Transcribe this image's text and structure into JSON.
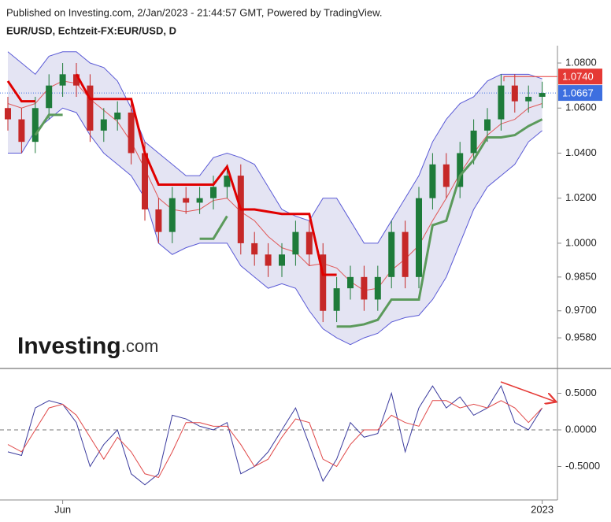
{
  "header": {
    "published": "Published on Investing.com, 2/Jan/2023 - 21:44:57 GMT, Powered by TradingView.",
    "symbol": "EUR/USD, Echtzeit-FX:EUR/USD, D"
  },
  "logo": {
    "brand": "Investing",
    "suffix": ".com"
  },
  "chart_data": [
    {
      "type": "candlestick",
      "open": [
        1.06,
        1.055,
        1.045,
        1.06,
        1.07,
        1.075,
        1.07,
        1.05,
        1.055,
        1.058,
        1.04,
        1.015,
        1.005,
        1.02,
        1.018,
        1.02,
        1.025,
        1.03,
        1.0,
        0.995,
        0.99,
        0.995,
        1.005,
        0.995,
        0.97,
        0.98,
        0.985,
        0.975,
        0.985,
        1.005,
        0.985,
        1.02,
        1.035,
        1.025,
        1.04,
        1.05,
        1.055,
        1.07,
        1.063,
        1.065
      ],
      "high": [
        1.065,
        1.06,
        1.065,
        1.075,
        1.08,
        1.08,
        1.075,
        1.06,
        1.063,
        1.063,
        1.045,
        1.02,
        1.025,
        1.025,
        1.025,
        1.03,
        1.035,
        1.035,
        1.005,
        1.0,
        1.0,
        1.01,
        1.01,
        1.0,
        0.985,
        0.99,
        0.99,
        0.99,
        1.01,
        1.01,
        1.025,
        1.04,
        1.04,
        1.045,
        1.055,
        1.06,
        1.075,
        1.075,
        1.07,
        1.0717
      ],
      "low": [
        1.05,
        1.04,
        1.04,
        1.055,
        1.065,
        1.065,
        1.045,
        1.045,
        1.05,
        1.035,
        1.01,
        1.0,
        1.0,
        1.013,
        1.013,
        1.015,
        1.02,
        0.995,
        0.99,
        0.985,
        0.985,
        0.99,
        0.99,
        0.965,
        0.965,
        0.975,
        0.97,
        0.97,
        0.98,
        0.98,
        0.98,
        1.015,
        1.02,
        1.02,
        1.035,
        1.045,
        1.05,
        1.058,
        1.058,
        1.06
      ],
      "close": [
        1.055,
        1.045,
        1.06,
        1.07,
        1.075,
        1.07,
        1.05,
        1.055,
        1.058,
        1.04,
        1.015,
        1.005,
        1.02,
        1.018,
        1.02,
        1.025,
        1.03,
        1.0,
        0.995,
        0.99,
        0.995,
        1.005,
        0.995,
        0.97,
        0.98,
        0.985,
        0.975,
        0.985,
        1.005,
        0.985,
        1.02,
        1.035,
        1.025,
        1.04,
        1.05,
        1.055,
        1.07,
        1.063,
        1.065,
        1.0667
      ],
      "up_color": "#1e7b3a",
      "down_color": "#c62828",
      "band_fill": "#e4e4f3",
      "series": [
        {
          "color": "#5a5ad6",
          "width": 1,
          "values": [
            1.085,
            1.08,
            1.075,
            1.083,
            1.085,
            1.085,
            1.08,
            1.078,
            1.072,
            1.06,
            1.045,
            1.04,
            1.035,
            1.03,
            1.03,
            1.038,
            1.04,
            1.038,
            1.035,
            1.025,
            1.015,
            1.012,
            1.01,
            1.02,
            1.02,
            1.01,
            1.0,
            1.0,
            1.01,
            1.02,
            1.03,
            1.045,
            1.055,
            1.062,
            1.065,
            1.072,
            1.075,
            1.075,
            1.075,
            1.073
          ]
        },
        {
          "color": "#5a5ad6",
          "width": 1,
          "values": [
            1.04,
            1.04,
            1.05,
            1.055,
            1.06,
            1.058,
            1.048,
            1.04,
            1.035,
            1.03,
            1.02,
            1.0,
            0.995,
            0.998,
            1.0,
            1.0,
            1.0,
            0.99,
            0.985,
            0.98,
            0.982,
            0.98,
            0.97,
            0.962,
            0.958,
            0.955,
            0.958,
            0.96,
            0.965,
            0.967,
            0.968,
            0.975,
            0.985,
            1.0,
            1.015,
            1.025,
            1.03,
            1.035,
            1.045,
            1.05
          ]
        },
        {
          "color": "#e05a5a",
          "width": 1,
          "values": [
            1.062,
            1.06,
            1.062,
            1.069,
            1.072,
            1.071,
            1.064,
            1.059,
            1.054,
            1.045,
            1.033,
            1.02,
            1.015,
            1.014,
            1.015,
            1.019,
            1.02,
            1.014,
            1.01,
            1.003,
            0.998,
            0.996,
            0.99,
            0.991,
            0.989,
            0.983,
            0.979,
            0.98,
            0.988,
            0.993,
            0.999,
            1.01,
            1.02,
            1.031,
            1.04,
            1.048,
            1.053,
            1.055,
            1.06,
            1.062
          ]
        },
        {
          "color": "#e00000",
          "width": 3,
          "values": [
            1.072,
            1.063,
            1.063,
            null,
            null,
            1.075,
            1.064,
            1.064,
            1.064,
            1.064,
            1.04,
            1.026,
            1.026,
            1.026,
            1.026,
            1.026,
            1.034,
            1.015,
            1.015,
            1.014,
            1.013,
            1.013,
            1.013,
            0.986,
            0.986,
            null,
            null,
            null,
            null,
            1.005,
            null,
            null,
            null,
            null,
            null,
            null,
            null,
            null,
            null,
            null
          ]
        },
        {
          "color": "#5b9a5b",
          "width": 3,
          "values": [
            null,
            null,
            1.048,
            1.057,
            1.057,
            null,
            null,
            null,
            null,
            null,
            null,
            null,
            null,
            null,
            1.002,
            1.002,
            1.012,
            null,
            null,
            null,
            null,
            null,
            null,
            null,
            0.963,
            0.963,
            0.964,
            0.966,
            0.975,
            0.975,
            0.975,
            1.008,
            1.01,
            1.03,
            1.037,
            1.047,
            1.047,
            1.048,
            1.052,
            1.055
          ]
        }
      ],
      "ylim": [
        0.9444,
        1.0877
      ],
      "yticks": [
        {
          "value": 1.08,
          "label": "1.0800"
        },
        {
          "value": 1.06,
          "label": "1.0600"
        },
        {
          "value": 1.04,
          "label": "1.0400"
        },
        {
          "value": 1.02,
          "label": "1.0200"
        },
        {
          "value": 1.0,
          "label": "1.0000"
        },
        {
          "value": 0.985,
          "label": "0.9850"
        },
        {
          "value": 0.97,
          "label": "0.9700"
        },
        {
          "value": 0.958,
          "label": "0.9580"
        }
      ],
      "high_level": {
        "value": 1.074,
        "label": "1.0740",
        "color": "#e53935"
      },
      "last_price": {
        "value": 1.0667,
        "label": "1.0667",
        "color": "#3d6fe0"
      }
    },
    {
      "type": "line",
      "categories": [
        null,
        null,
        null,
        null,
        "Jun",
        null,
        null,
        null,
        null,
        null,
        null,
        null,
        null,
        null,
        null,
        null,
        null,
        null,
        null,
        null,
        null,
        null,
        null,
        null,
        null,
        null,
        null,
        null,
        null,
        null,
        null,
        null,
        null,
        null,
        null,
        null,
        null,
        null,
        null,
        "2023"
      ],
      "series": [
        {
          "color": "#3b3b9e",
          "width": 1,
          "values": [
            -0.3,
            -0.35,
            0.3,
            0.4,
            0.35,
            0.1,
            -0.5,
            -0.2,
            0.0,
            -0.6,
            -0.75,
            -0.6,
            0.2,
            0.15,
            0.05,
            0.0,
            0.1,
            -0.6,
            -0.5,
            -0.3,
            0.0,
            0.3,
            -0.2,
            -0.7,
            -0.4,
            0.1,
            -0.1,
            -0.05,
            0.5,
            -0.3,
            0.3,
            0.6,
            0.3,
            0.45,
            0.2,
            0.3,
            0.6,
            0.1,
            0.0,
            0.3
          ]
        },
        {
          "color": "#e04848",
          "width": 1,
          "values": [
            -0.2,
            -0.3,
            0.0,
            0.3,
            0.35,
            0.2,
            -0.1,
            -0.4,
            -0.1,
            -0.3,
            -0.6,
            -0.65,
            -0.3,
            0.1,
            0.1,
            0.05,
            0.05,
            -0.2,
            -0.5,
            -0.4,
            -0.1,
            0.15,
            0.1,
            -0.4,
            -0.5,
            -0.2,
            0.0,
            0.0,
            0.2,
            0.1,
            0.05,
            0.4,
            0.4,
            0.3,
            0.35,
            0.3,
            0.4,
            0.3,
            0.1,
            0.3
          ]
        }
      ],
      "ylim": [
        -0.957,
        0.817
      ],
      "yticks": [
        {
          "value": 0.5,
          "label": "0.5000"
        },
        {
          "value": 0,
          "label": "0.0000"
        },
        {
          "value": -0.5,
          "label": "-0.5000"
        }
      ],
      "zero_line": true
    }
  ]
}
